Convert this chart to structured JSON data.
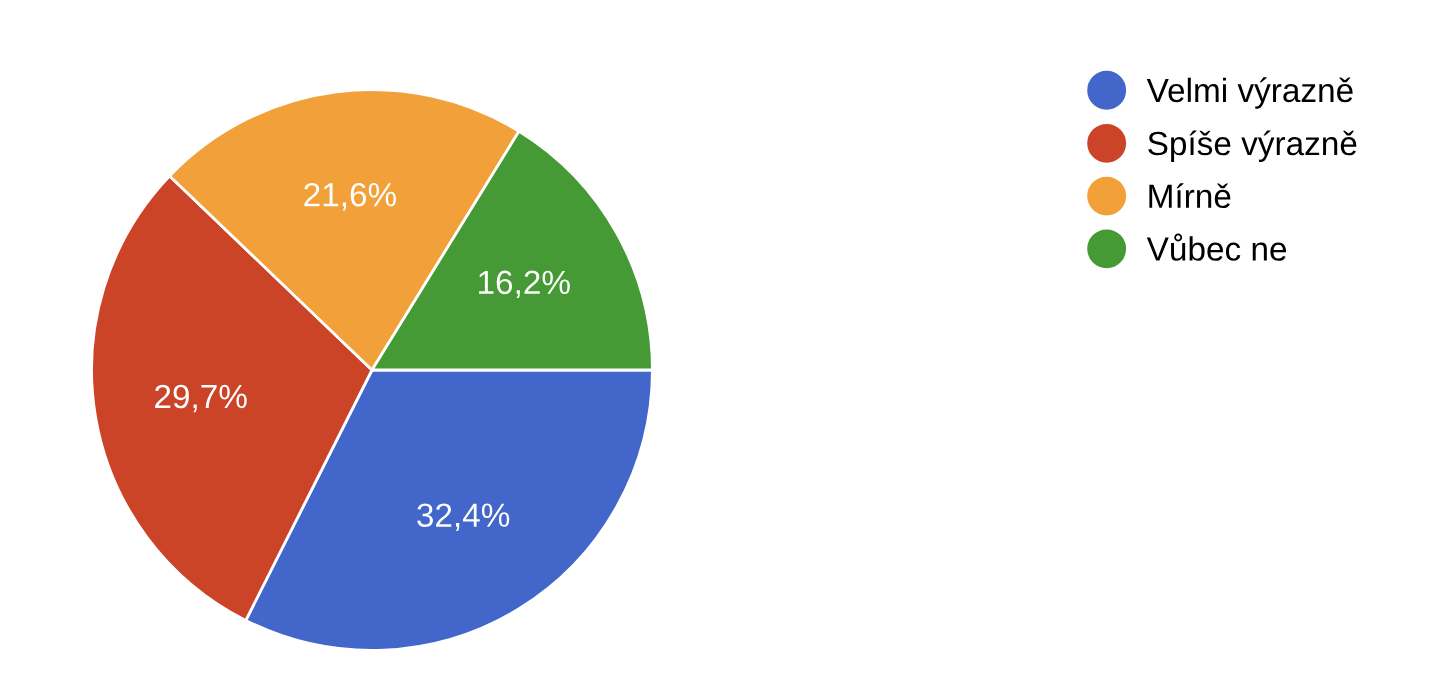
{
  "chart_data": {
    "type": "pie",
    "categories": [
      "Velmi výrazně",
      "Spíše výrazně",
      "Mírně",
      "Vůbec ne"
    ],
    "values": [
      32.4,
      29.7,
      21.6,
      16.2
    ],
    "value_labels": [
      "32,4%",
      "29,7%",
      "21,6%",
      "16,2%"
    ],
    "colors": [
      "#4266c9",
      "#cb4428",
      "#f2a13a",
      "#459a35"
    ],
    "legend": "top right"
  }
}
